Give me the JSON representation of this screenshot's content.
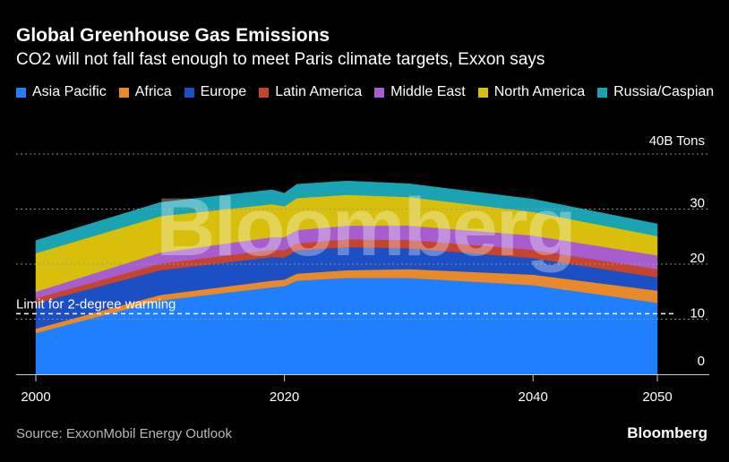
{
  "header": {
    "title": "Global Greenhouse Gas Emissions",
    "subtitle": "CO2 will not fall fast enough to meet Paris climate targets, Exxon says"
  },
  "footer": {
    "source": "Source: ExxonMobil Energy Outlook",
    "brand": "Bloomberg"
  },
  "watermark": "Bloomberg",
  "colors": {
    "background": "#000000",
    "grid": "#8a8a8a",
    "text": "#ffffff",
    "muted": "#b8b8b8"
  },
  "chart_data": {
    "type": "area",
    "stacked": true,
    "title": "Global Greenhouse Gas Emissions",
    "subtitle": "CO2 will not fall fast enough to meet Paris climate targets, Exxon says",
    "unit_label": "40B Tons",
    "x": [
      2000,
      2010,
      2019,
      2020,
      2021,
      2025,
      2030,
      2040,
      2050
    ],
    "xticks": [
      2000,
      2020,
      2040,
      2050
    ],
    "yticks": [
      0,
      10,
      20,
      30,
      40
    ],
    "ytick_labels": [
      "0",
      "10",
      "20",
      "30",
      "40B Tons"
    ],
    "xlim": [
      2000,
      2050
    ],
    "ylim": [
      0,
      40
    ],
    "y_axis_position": "right",
    "grid": true,
    "legend_position": "top",
    "series": [
      {
        "name": "Asia Pacific",
        "color": "#1f7fff",
        "values": [
          7.5,
          13.4,
          15.8,
          16.0,
          17.0,
          17.5,
          17.5,
          16.2,
          13.0
        ]
      },
      {
        "name": "Africa",
        "color": "#e88a2a",
        "values": [
          0.8,
          1.0,
          1.2,
          1.2,
          1.3,
          1.4,
          1.6,
          1.9,
          2.2
        ]
      },
      {
        "name": "Europe",
        "color": "#1c4fc4",
        "values": [
          4.6,
          4.5,
          4.3,
          4.0,
          4.2,
          4.2,
          3.8,
          3.0,
          2.4
        ]
      },
      {
        "name": "Latin America",
        "color": "#c6432e",
        "values": [
          0.9,
          1.2,
          1.3,
          1.3,
          1.3,
          1.4,
          1.5,
          1.5,
          1.5
        ]
      },
      {
        "name": "Middle East",
        "color": "#a65ecf",
        "values": [
          1.2,
          2.0,
          2.3,
          2.4,
          2.4,
          2.5,
          2.6,
          2.6,
          2.5
        ]
      },
      {
        "name": "North America",
        "color": "#d8bf0b",
        "values": [
          7.0,
          6.6,
          6.0,
          5.6,
          5.8,
          5.6,
          5.2,
          4.3,
          3.5
        ]
      },
      {
        "name": "Russia/Caspian",
        "color": "#1aa3b3",
        "values": [
          2.3,
          2.5,
          2.6,
          2.4,
          2.5,
          2.5,
          2.4,
          2.3,
          2.2
        ]
      }
    ],
    "annotations": [
      {
        "text": "Limit for 2-degree warming",
        "y": 11,
        "style": "dashed line"
      }
    ]
  }
}
